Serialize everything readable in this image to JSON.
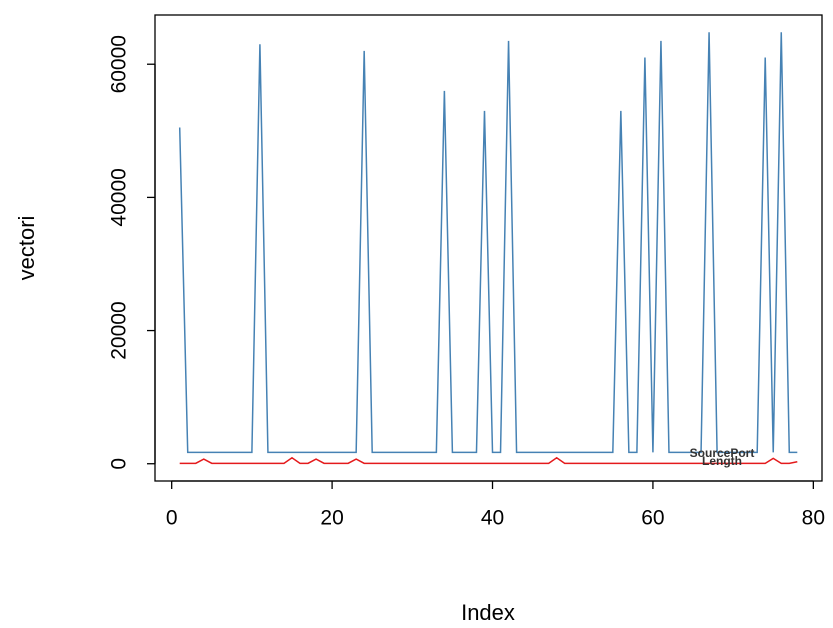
{
  "chart_data": {
    "type": "line",
    "x_label": "Index",
    "y_label": "vectori",
    "x": [
      1,
      2,
      3,
      4,
      5,
      6,
      7,
      8,
      9,
      10,
      11,
      12,
      13,
      14,
      15,
      16,
      17,
      18,
      19,
      20,
      21,
      22,
      23,
      24,
      25,
      26,
      27,
      28,
      29,
      30,
      31,
      32,
      33,
      34,
      35,
      36,
      37,
      38,
      39,
      40,
      41,
      42,
      43,
      44,
      45,
      46,
      47,
      48,
      49,
      50,
      51,
      52,
      53,
      54,
      55,
      56,
      57,
      58,
      59,
      60,
      61,
      62,
      63,
      64,
      65,
      66,
      67,
      68,
      69,
      70,
      71,
      72,
      73,
      74,
      75,
      76,
      77,
      78
    ],
    "series": [
      {
        "name": "SourcePort",
        "color": "#4682b4",
        "values": [
          50500,
          1700,
          1700,
          1700,
          1700,
          1700,
          1700,
          1700,
          1700,
          1700,
          63000,
          1700,
          1700,
          1700,
          1700,
          1700,
          1700,
          1700,
          1700,
          1700,
          1700,
          1700,
          1700,
          62000,
          1700,
          1700,
          1700,
          1700,
          1700,
          1700,
          1700,
          1700,
          1700,
          56000,
          1700,
          1700,
          1700,
          1700,
          53000,
          1700,
          1700,
          63500,
          1700,
          1700,
          1700,
          1700,
          1700,
          1700,
          1700,
          1700,
          1700,
          1700,
          1700,
          1700,
          1700,
          53000,
          1700,
          1700,
          61000,
          1700,
          63500,
          1700,
          1700,
          1700,
          1700,
          1700,
          64800,
          1700,
          1700,
          1700,
          1700,
          1700,
          1700,
          61000,
          1700,
          64800,
          1700,
          1700
        ]
      },
      {
        "name": "Length",
        "color": "#e41a1c",
        "values": [
          60,
          60,
          60,
          700,
          60,
          60,
          60,
          60,
          60,
          60,
          60,
          60,
          60,
          60,
          900,
          60,
          60,
          700,
          60,
          60,
          60,
          60,
          700,
          60,
          60,
          60,
          60,
          60,
          60,
          60,
          60,
          60,
          60,
          60,
          60,
          60,
          60,
          60,
          60,
          60,
          60,
          60,
          60,
          60,
          60,
          60,
          60,
          900,
          60,
          60,
          60,
          60,
          60,
          60,
          60,
          60,
          60,
          60,
          60,
          60,
          60,
          60,
          60,
          60,
          60,
          60,
          60,
          60,
          60,
          60,
          60,
          60,
          60,
          60,
          800,
          60,
          60,
          300
        ]
      }
    ],
    "xlim": [
      -2.08,
      81.08
    ],
    "xticks": [
      0,
      20,
      40,
      60,
      80
    ],
    "ylim": [
      -2592,
      67392
    ],
    "yticks": [
      0,
      20000,
      40000,
      60000
    ],
    "legend_position": "bottomright"
  }
}
